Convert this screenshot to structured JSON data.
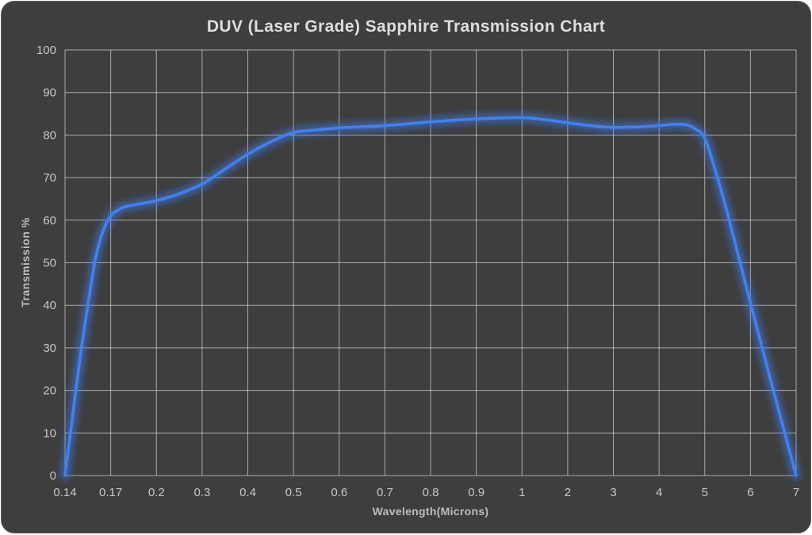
{
  "panel": {
    "background": "#3e3e3e",
    "page_background": "#ffffff",
    "grid_color": "rgba(255,255,255,0.55)",
    "text_color": "#c8c8c8"
  },
  "chart_data": {
    "type": "line",
    "title": "DUV (Laser Grade) Sapphire Transmission Chart",
    "xlabel": "Wavelength(Microns)",
    "ylabel": "Transmission %",
    "x_scale": "segment-uniform (log-like) tick spacing",
    "x_ticks": [
      0.14,
      0.17,
      0.2,
      0.3,
      0.4,
      0.5,
      0.6,
      0.7,
      0.8,
      0.9,
      1,
      2,
      3,
      4,
      5,
      6,
      7
    ],
    "y_ticks": [
      0,
      10,
      20,
      30,
      40,
      50,
      60,
      70,
      80,
      90,
      100
    ],
    "ylim": [
      0,
      100
    ],
    "grid": true,
    "legend": "none",
    "series": [
      {
        "name": "Sapphire transmission",
        "color": "#4180f2",
        "glow": true,
        "points": [
          [
            0.14,
            0
          ],
          [
            0.145,
            14
          ],
          [
            0.15,
            28
          ],
          [
            0.155,
            40
          ],
          [
            0.16,
            51
          ],
          [
            0.165,
            57.5
          ],
          [
            0.17,
            61
          ],
          [
            0.175,
            62.4
          ],
          [
            0.18,
            63.2
          ],
          [
            0.2,
            64.6
          ],
          [
            0.25,
            66.2
          ],
          [
            0.3,
            68.5
          ],
          [
            0.35,
            72
          ],
          [
            0.4,
            75.5
          ],
          [
            0.45,
            78.4
          ],
          [
            0.5,
            80.6
          ],
          [
            0.55,
            81.2
          ],
          [
            0.6,
            81.7
          ],
          [
            0.7,
            82.2
          ],
          [
            0.8,
            83.1
          ],
          [
            0.9,
            83.8
          ],
          [
            1,
            84.1
          ],
          [
            1.5,
            83.6
          ],
          [
            2,
            82.9
          ],
          [
            2.5,
            82.2
          ],
          [
            3,
            81.8
          ],
          [
            3.5,
            81.9
          ],
          [
            4,
            82.2
          ],
          [
            4.3,
            82.5
          ],
          [
            4.6,
            82.4
          ],
          [
            4.8,
            81.4
          ],
          [
            5,
            79.3
          ],
          [
            5.25,
            71
          ],
          [
            5.5,
            61.5
          ],
          [
            6,
            40.5
          ],
          [
            6.5,
            20
          ],
          [
            7,
            0
          ]
        ]
      }
    ]
  }
}
